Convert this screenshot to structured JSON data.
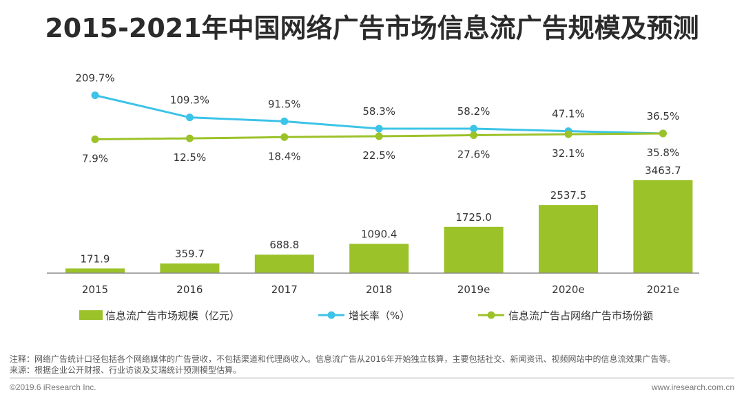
{
  "title": "2015-2021年中国网络广告市场信息流广告规模及预测",
  "chart_data": {
    "type": "bar",
    "categories": [
      "2015",
      "2016",
      "2017",
      "2018",
      "2019e",
      "2020e",
      "2021e"
    ],
    "series": [
      {
        "name": "信息流广告市场规模（亿元）",
        "type": "bar",
        "color": "#9bc228",
        "values": [
          171.9,
          359.7,
          688.8,
          1090.4,
          1725.0,
          2537.5,
          3463.7
        ],
        "labels": [
          "171.9",
          "359.7",
          "688.8",
          "1090.4",
          "1725.0",
          "2537.5",
          "3463.7"
        ]
      },
      {
        "name": "增长率（%）",
        "type": "line",
        "color": "#3cc3e7",
        "values": [
          209.7,
          109.3,
          91.5,
          58.3,
          58.2,
          47.1,
          36.5
        ],
        "labels": [
          "209.7%",
          "109.3%",
          "91.5%",
          "58.3%",
          "58.2%",
          "47.1%",
          "36.5%"
        ]
      },
      {
        "name": "信息流广告占网络广告市场份额",
        "type": "line",
        "color": "#9bc228",
        "values": [
          7.9,
          12.5,
          18.4,
          22.5,
          27.6,
          32.1,
          35.8
        ],
        "labels": [
          "7.9%",
          "12.5%",
          "18.4%",
          "22.5%",
          "27.6%",
          "32.1%",
          "35.8%"
        ]
      }
    ],
    "legend_position": "bottom",
    "grid": false
  },
  "notes": {
    "note": "注释：网络广告统计口径包括各个网络媒体的广告营收，不包括渠道和代理商收入。信息流广告从2016年开始独立核算，主要包括社交、新闻资讯、视频网站中的信息流效果广告等。",
    "source": "来源：根据企业公开财报、行业访谈及艾瑞统计预测模型估算。"
  },
  "footer": {
    "left": "©2019.6 iResearch Inc.",
    "right": "www.iresearch.com.cn"
  }
}
